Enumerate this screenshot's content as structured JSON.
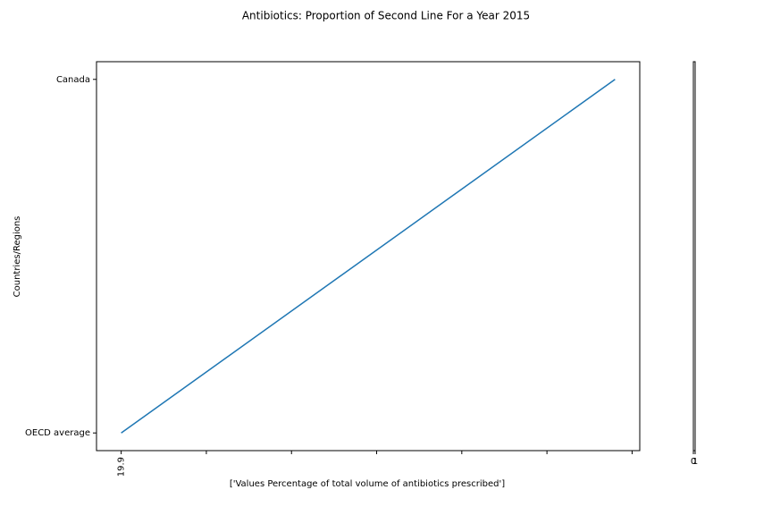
{
  "chart_data": [
    {
      "type": "line",
      "orientation": "horizontal",
      "title": "Antibiotics: Proportion of Second Line For a Year 2015",
      "x_label": "['Values Percentage of total volume of antibiotics prescribed']",
      "y_label": "Countries/Regions",
      "categories": [
        "OECD average",
        "Canada"
      ],
      "series": [
        {
          "color": "#1f77b4",
          "values": [
            19.9,
            25.7
          ]
        }
      ],
      "xlim": [
        19.61,
        25.99
      ],
      "xticks": [
        19.9
      ],
      "xticks_unlabeled": [
        20.9,
        21.9,
        22.9,
        23.9,
        24.9,
        25.9
      ]
    },
    {
      "type": "empty",
      "xlim": [
        0,
        1
      ],
      "xticks": [
        0,
        1
      ]
    }
  ]
}
